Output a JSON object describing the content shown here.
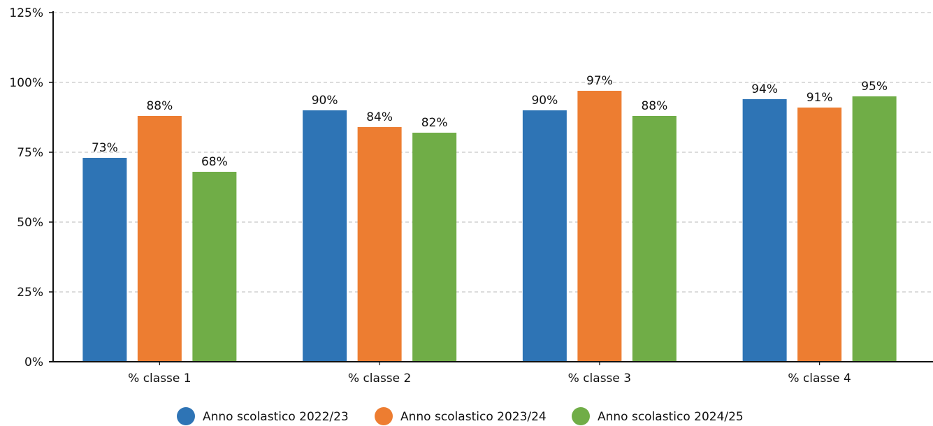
{
  "chart_data": {
    "type": "bar",
    "categories": [
      "% classe 1",
      "% classe 2",
      "% classe 3",
      "% classe 4"
    ],
    "series": [
      {
        "name": "Anno scolastico 2022/23",
        "color": "#2e74b5",
        "values": [
          73,
          90,
          90,
          94
        ],
        "labels": [
          "73%",
          "90%",
          "90%",
          "94%"
        ]
      },
      {
        "name": "Anno scolastico 2023/24",
        "color": "#ed7d31",
        "values": [
          88,
          84,
          97,
          91
        ],
        "labels": [
          "88%",
          "84%",
          "97%",
          "91%"
        ]
      },
      {
        "name": "Anno scolastico 2024/25",
        "color": "#70ad47",
        "values": [
          68,
          82,
          88,
          95
        ],
        "labels": [
          "68%",
          "82%",
          "88%",
          "95%"
        ]
      }
    ],
    "ylim": [
      0,
      125
    ],
    "yticks": [
      "0%",
      "25%",
      "50%",
      "75%",
      "100%",
      "125%"
    ],
    "ytick_values": [
      0,
      25,
      50,
      75,
      100,
      125
    ],
    "grid": true,
    "grid_style": "dashed",
    "legend_position": "bottom-center",
    "title": "",
    "xlabel": "",
    "ylabel": ""
  }
}
